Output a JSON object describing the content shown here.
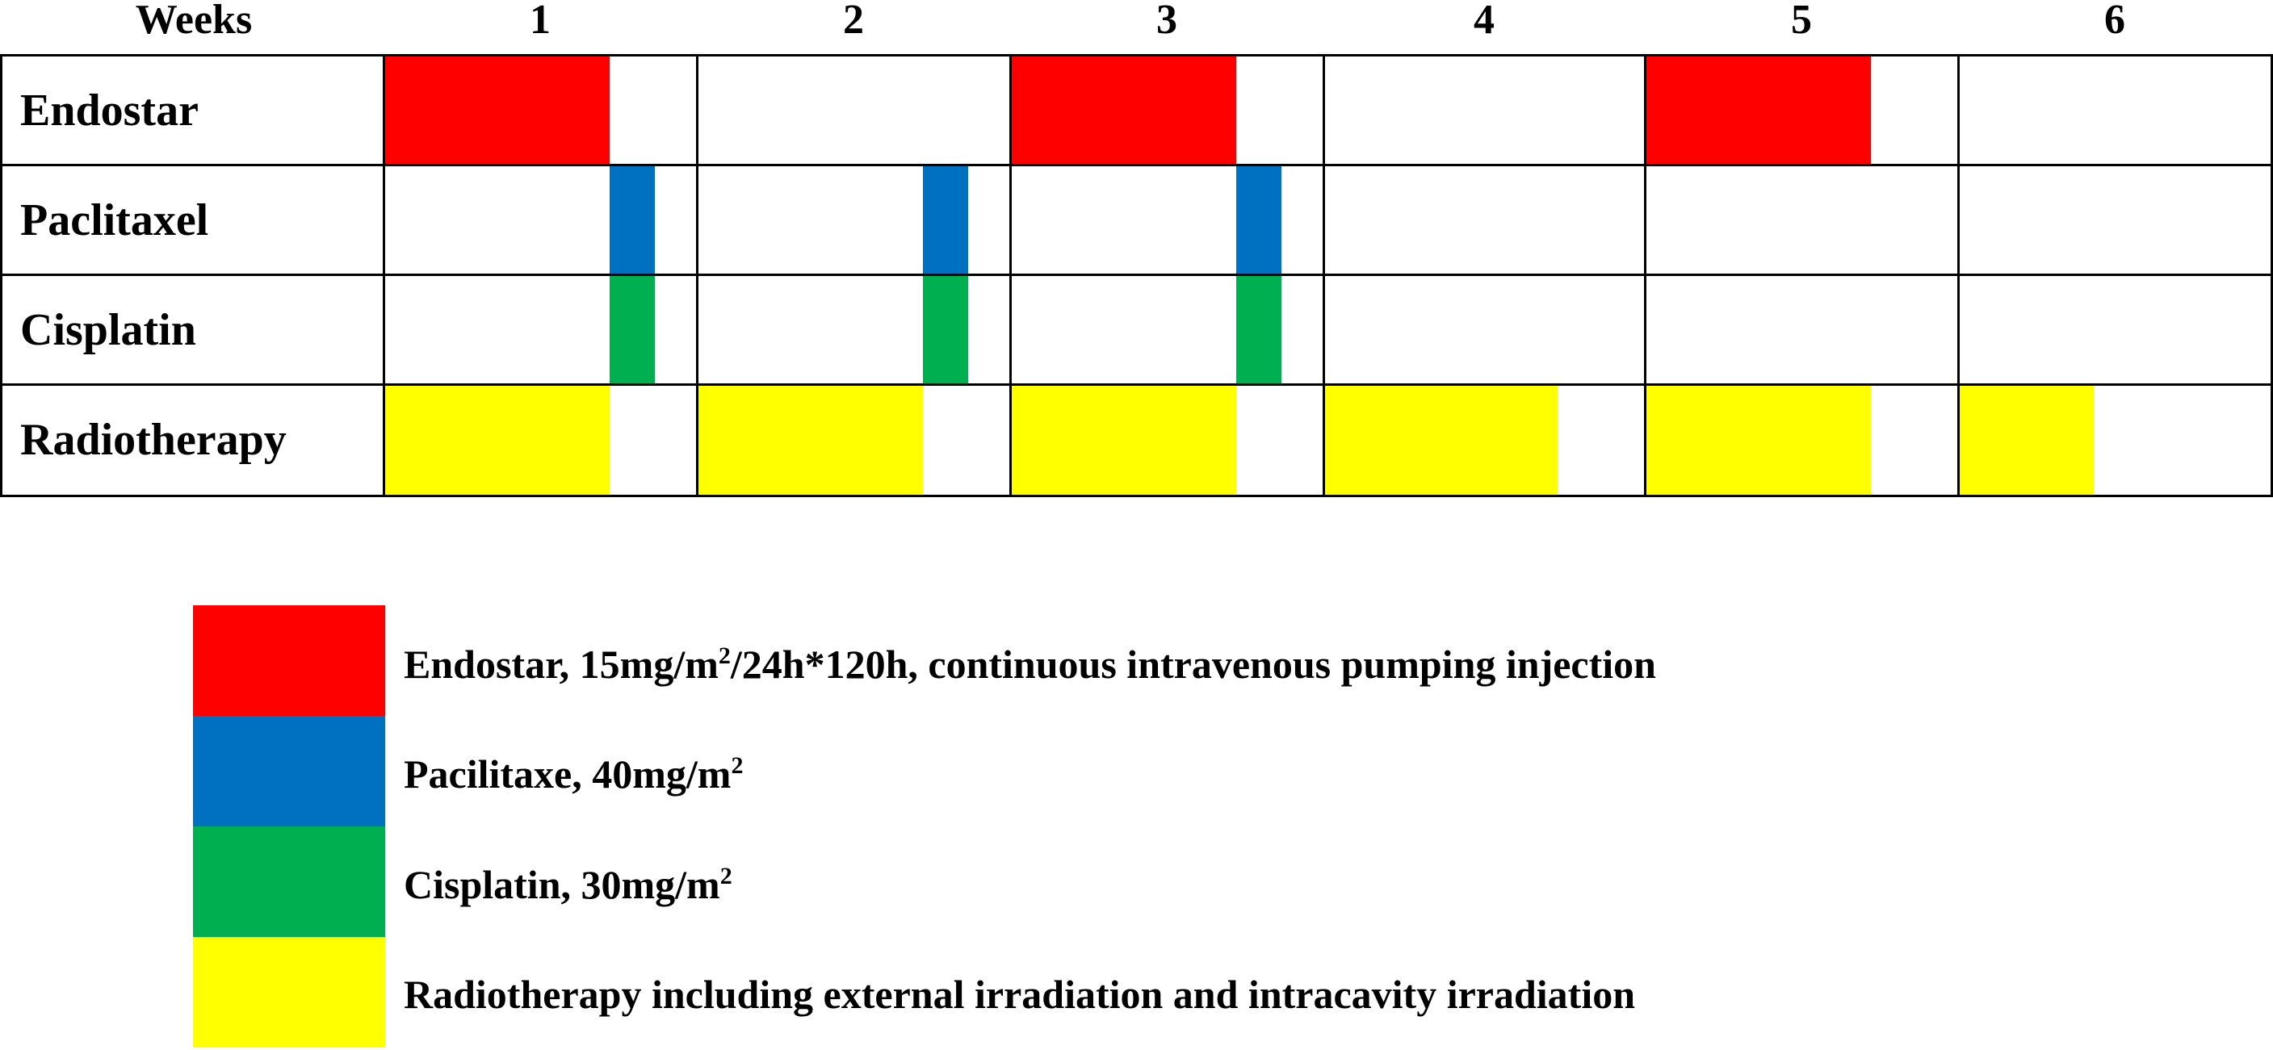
{
  "header": {
    "weeks_label": "Weeks",
    "weeks": [
      "1",
      "2",
      "3",
      "4",
      "5",
      "6"
    ]
  },
  "rows": [
    {
      "label": "Endostar",
      "color": "#ff0000"
    },
    {
      "label": "Paclitaxel",
      "color": "#0070c0"
    },
    {
      "label": "Cisplatin",
      "color": "#00b050"
    },
    {
      "label": "Radiotherapy",
      "color": "#ffff00"
    }
  ],
  "schedule": {
    "endostar_weeks": [
      1,
      3,
      5
    ],
    "paclitaxel_weeks": [
      1,
      2,
      3
    ],
    "cisplatin_weeks": [
      1,
      2,
      3
    ],
    "radiotherapy_weeks": [
      1,
      2,
      3,
      4,
      5,
      6
    ]
  },
  "legend": [
    {
      "color": "#ff0000",
      "text_pre": "Endostar, 15mg/m",
      "sup": "2",
      "text_post": "/24h*120h, continuous intravenous pumping injection"
    },
    {
      "color": "#0070c0",
      "text_pre": "Pacilitaxe, 40mg/m",
      "sup": "2",
      "text_post": ""
    },
    {
      "color": "#00b050",
      "text_pre": "Cisplatin, 30mg/m",
      "sup": "2",
      "text_post": ""
    },
    {
      "color": "#ffff00",
      "text_pre": "Radiotherapy including  external irradiation and intracavity irradiation",
      "sup": "",
      "text_post": ""
    }
  ]
}
